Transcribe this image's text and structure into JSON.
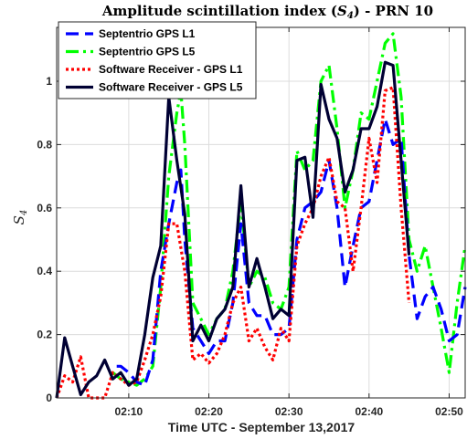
{
  "chart_data": {
    "type": "line",
    "title": "Amplitude scintillation index (S4) - PRN 10",
    "title_parts": {
      "prefix": "Amplitude scintillation index (",
      "symbol": "S",
      "subscript": "4",
      "suffix": ") - PRN 10"
    },
    "xlabel": "Time UTC - September 13,2017",
    "ylabel": {
      "symbol": "S",
      "subscript": "4"
    },
    "xlim": [
      "02:01",
      "02:52"
    ],
    "ylim": [
      0,
      1.17
    ],
    "x_ticks": [
      "02:10",
      "02:20",
      "02:30",
      "02:40",
      "02:50"
    ],
    "y_ticks": [
      "0",
      "0.2",
      "0.4",
      "0.6",
      "0.8",
      "1"
    ],
    "grid": true,
    "legend_position": "top-left",
    "series": [
      {
        "name": "Septentrio GPS L1",
        "color": "#0000ff",
        "dash": "dashed",
        "points": [
          [
            "02:08:30",
            0.1
          ],
          [
            "02:09",
            0.1
          ],
          [
            "02:10",
            0.08
          ],
          [
            "02:11",
            0.05
          ],
          [
            "02:12",
            0.04
          ],
          [
            "02:13",
            0.12
          ],
          [
            "02:14",
            0.4
          ],
          [
            "02:15",
            0.55
          ],
          [
            "02:16",
            0.68
          ],
          [
            "02:16:30",
            0.72
          ],
          [
            "02:17",
            0.5
          ],
          [
            "02:18",
            0.22
          ],
          [
            "02:19",
            0.18
          ],
          [
            "02:20",
            0.14
          ],
          [
            "02:21",
            0.18
          ],
          [
            "02:22",
            0.18
          ],
          [
            "02:23",
            0.3
          ],
          [
            "02:24",
            0.55
          ],
          [
            "02:25",
            0.3
          ],
          [
            "02:26",
            0.26
          ],
          [
            "02:27",
            0.26
          ],
          [
            "02:28",
            0.2
          ],
          [
            "02:29",
            0.2
          ],
          [
            "02:30",
            0.22
          ],
          [
            "02:31",
            0.5
          ],
          [
            "02:32",
            0.6
          ],
          [
            "02:33",
            0.62
          ],
          [
            "02:34",
            0.65
          ],
          [
            "02:35",
            0.75
          ],
          [
            "02:36",
            0.6
          ],
          [
            "02:37",
            0.35
          ],
          [
            "02:38",
            0.48
          ],
          [
            "02:39",
            0.6
          ],
          [
            "02:40",
            0.62
          ],
          [
            "02:41",
            0.75
          ],
          [
            "02:42",
            0.88
          ],
          [
            "02:43",
            0.8
          ],
          [
            "02:44",
            0.82
          ],
          [
            "02:45",
            0.45
          ],
          [
            "02:46",
            0.25
          ],
          [
            "02:47",
            0.32
          ],
          [
            "02:48",
            0.35
          ],
          [
            "02:49",
            0.28
          ],
          [
            "02:50",
            0.18
          ],
          [
            "02:51",
            0.2
          ],
          [
            "02:52",
            0.35
          ]
        ]
      },
      {
        "name": "Septentrio GPS L5",
        "color": "#00ff00",
        "dash": "dashdot",
        "points": [
          [
            "02:08",
            0.08
          ],
          [
            "02:09",
            0.06
          ],
          [
            "02:10",
            0.05
          ],
          [
            "02:11",
            0.04
          ],
          [
            "02:12",
            0.06
          ],
          [
            "02:13",
            0.1
          ],
          [
            "02:14",
            0.35
          ],
          [
            "02:15",
            0.7
          ],
          [
            "02:16",
            0.9
          ],
          [
            "02:16:30",
            0.97
          ],
          [
            "02:17",
            0.8
          ],
          [
            "02:18",
            0.3
          ],
          [
            "02:19",
            0.25
          ],
          [
            "02:20",
            0.2
          ],
          [
            "02:21",
            0.25
          ],
          [
            "02:22",
            0.28
          ],
          [
            "02:23",
            0.4
          ],
          [
            "02:24",
            0.62
          ],
          [
            "02:25",
            0.35
          ],
          [
            "02:26",
            0.4
          ],
          [
            "02:27",
            0.38
          ],
          [
            "02:28",
            0.3
          ],
          [
            "02:29",
            0.28
          ],
          [
            "02:30",
            0.35
          ],
          [
            "02:31",
            0.78
          ],
          [
            "02:32",
            0.72
          ],
          [
            "02:33",
            0.75
          ],
          [
            "02:34",
            1.0
          ],
          [
            "02:35",
            1.05
          ],
          [
            "02:36",
            0.85
          ],
          [
            "02:37",
            0.6
          ],
          [
            "02:38",
            0.72
          ],
          [
            "02:39",
            0.9
          ],
          [
            "02:40",
            0.88
          ],
          [
            "02:41",
            1.0
          ],
          [
            "02:42",
            1.12
          ],
          [
            "02:43",
            1.15
          ],
          [
            "02:44",
            0.95
          ],
          [
            "02:45",
            0.5
          ],
          [
            "02:46",
            0.4
          ],
          [
            "02:47",
            0.48
          ],
          [
            "02:48",
            0.35
          ],
          [
            "02:49",
            0.22
          ],
          [
            "02:50",
            0.08
          ],
          [
            "02:51",
            0.3
          ],
          [
            "02:52",
            0.48
          ]
        ]
      },
      {
        "name": "Software Receiver - GPS L1",
        "color": "#ff0000",
        "dash": "dotted",
        "points": [
          [
            "02:01",
            0.0
          ],
          [
            "02:02",
            0.07
          ],
          [
            "02:03",
            0.05
          ],
          [
            "02:04",
            0.13
          ],
          [
            "02:05",
            0.0
          ],
          [
            "02:06",
            0.0
          ],
          [
            "02:07",
            0.0
          ],
          [
            "02:08",
            0.08
          ],
          [
            "02:09",
            0.06
          ],
          [
            "02:10",
            0.04
          ],
          [
            "02:11",
            0.05
          ],
          [
            "02:12",
            0.12
          ],
          [
            "02:13",
            0.2
          ],
          [
            "02:14",
            0.32
          ],
          [
            "02:15",
            0.55
          ],
          [
            "02:16",
            0.55
          ],
          [
            "02:17",
            0.4
          ],
          [
            "02:18",
            0.12
          ],
          [
            "02:19",
            0.14
          ],
          [
            "02:20",
            0.11
          ],
          [
            "02:21",
            0.14
          ],
          [
            "02:22",
            0.2
          ],
          [
            "02:23",
            0.3
          ],
          [
            "02:24",
            0.35
          ],
          [
            "02:25",
            0.18
          ],
          [
            "02:26",
            0.22
          ],
          [
            "02:27",
            0.16
          ],
          [
            "02:28",
            0.12
          ],
          [
            "02:29",
            0.22
          ],
          [
            "02:30",
            0.18
          ],
          [
            "02:31",
            0.48
          ],
          [
            "02:32",
            0.55
          ],
          [
            "02:33",
            0.6
          ],
          [
            "02:34",
            0.7
          ],
          [
            "02:35",
            0.76
          ],
          [
            "02:36",
            0.62
          ],
          [
            "02:37",
            0.6
          ],
          [
            "02:38",
            0.4
          ],
          [
            "02:39",
            0.6
          ],
          [
            "02:40",
            0.82
          ],
          [
            "02:41",
            0.68
          ],
          [
            "02:42",
            0.97
          ],
          [
            "02:43",
            0.98
          ],
          [
            "02:44",
            0.6
          ],
          [
            "02:45",
            0.3
          ]
        ]
      },
      {
        "name": "Software Receiver - GPS L5",
        "color": "#000033",
        "dash": "solid",
        "points": [
          [
            "02:01",
            0.0
          ],
          [
            "02:02",
            0.19
          ],
          [
            "02:03",
            0.1
          ],
          [
            "02:04",
            0.01
          ],
          [
            "02:05",
            0.05
          ],
          [
            "02:06",
            0.07
          ],
          [
            "02:07",
            0.12
          ],
          [
            "02:08",
            0.06
          ],
          [
            "02:09",
            0.08
          ],
          [
            "02:10",
            0.04
          ],
          [
            "02:11",
            0.06
          ],
          [
            "02:12",
            0.2
          ],
          [
            "02:13",
            0.38
          ],
          [
            "02:14",
            0.48
          ],
          [
            "02:15",
            0.95
          ],
          [
            "02:16",
            0.75
          ],
          [
            "02:17",
            0.58
          ],
          [
            "02:18",
            0.18
          ],
          [
            "02:19",
            0.23
          ],
          [
            "02:20",
            0.18
          ],
          [
            "02:21",
            0.25
          ],
          [
            "02:22",
            0.28
          ],
          [
            "02:23",
            0.35
          ],
          [
            "02:24",
            0.67
          ],
          [
            "02:25",
            0.35
          ],
          [
            "02:26",
            0.44
          ],
          [
            "02:27",
            0.35
          ],
          [
            "02:28",
            0.25
          ],
          [
            "02:29",
            0.28
          ],
          [
            "02:30",
            0.26
          ],
          [
            "02:31",
            0.75
          ],
          [
            "02:32",
            0.76
          ],
          [
            "02:33",
            0.57
          ],
          [
            "02:34",
            0.99
          ],
          [
            "02:35",
            0.88
          ],
          [
            "02:36",
            0.82
          ],
          [
            "02:37",
            0.65
          ],
          [
            "02:38",
            0.72
          ],
          [
            "02:39",
            0.85
          ],
          [
            "02:40",
            0.85
          ],
          [
            "02:41",
            0.92
          ],
          [
            "02:42",
            1.06
          ],
          [
            "02:43",
            1.05
          ],
          [
            "02:44",
            0.75
          ],
          [
            "02:45",
            0.45
          ]
        ]
      }
    ]
  }
}
